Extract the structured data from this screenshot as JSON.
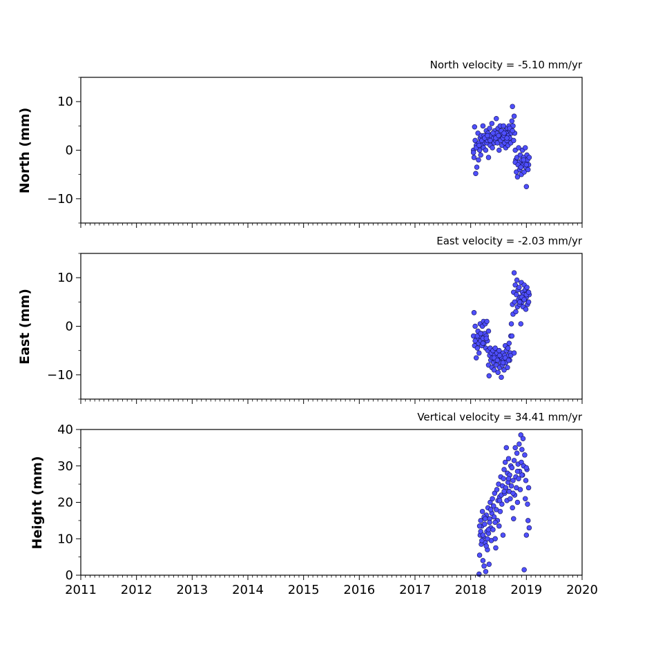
{
  "colors": {
    "point_fill": "#4f4fff",
    "point_edge": "#1a1a66",
    "axis": "#000000",
    "background": "#ffffff"
  },
  "chart_data": [
    {
      "type": "scatter",
      "title": "North velocity = -5.10 mm/yr",
      "xlabel": "",
      "ylabel": "North (mm)",
      "xlim": [
        2011,
        2020
      ],
      "ylim": [
        -15,
        15
      ],
      "yticks": [
        -10,
        0,
        10
      ],
      "ytick_labels": [
        "−10",
        "0",
        "10"
      ],
      "grid": false,
      "legend": "none",
      "series": [
        {
          "x": [
            2018.05,
            2018.06,
            2018.07,
            2018.08,
            2018.09,
            2018.1,
            2018.11,
            2018.12,
            2018.13,
            2018.14,
            2018.15,
            2018.16,
            2018.17,
            2018.18,
            2018.19,
            2018.2,
            2018.21,
            2018.22,
            2018.23,
            2018.24,
            2018.25,
            2018.26,
            2018.27,
            2018.28,
            2018.29,
            2018.3,
            2018.31,
            2018.32,
            2018.33,
            2018.34,
            2018.35,
            2018.36,
            2018.37,
            2018.38,
            2018.39,
            2018.4,
            2018.41,
            2018.42,
            2018.43,
            2018.44,
            2018.45,
            2018.46,
            2018.47,
            2018.48,
            2018.49,
            2018.5,
            2018.51,
            2018.52,
            2018.53,
            2018.54,
            2018.55,
            2018.56,
            2018.57,
            2018.58,
            2018.59,
            2018.6,
            2018.61,
            2018.62,
            2018.63,
            2018.64,
            2018.65,
            2018.66,
            2018.67,
            2018.68,
            2018.69,
            2018.7,
            2018.71,
            2018.72,
            2018.73,
            2018.74,
            2018.75,
            2018.76,
            2018.77,
            2018.78,
            2018.79,
            2018.8,
            2018.81,
            2018.82,
            2018.83,
            2018.84,
            2018.85,
            2018.86,
            2018.87,
            2018.88,
            2018.89,
            2018.9,
            2018.91,
            2018.92,
            2018.93,
            2018.94,
            2018.95,
            2018.96,
            2018.97,
            2018.98,
            2018.99,
            2019.0,
            2019.01,
            2019.02,
            2019.03,
            2019.04,
            2019.05,
            2018.05,
            2018.1,
            2018.15,
            2018.2,
            2018.25,
            2018.3,
            2018.35,
            2018.4,
            2018.45,
            2018.5,
            2018.55,
            2018.6,
            2018.65,
            2018.7,
            2018.75,
            2018.8,
            2018.85,
            2018.9,
            2018.95,
            2019.0
          ],
          "y": [
            0.0,
            -1.5,
            4.8,
            2.0,
            -4.8,
            1.0,
            -3.5,
            0.5,
            3.5,
            -2.0,
            1.5,
            0.0,
            2.5,
            -1.0,
            3.0,
            1.0,
            2.0,
            5.0,
            0.5,
            3.0,
            1.5,
            2.5,
            0.0,
            4.0,
            1.5,
            2.0,
            3.5,
            -1.5,
            2.5,
            4.5,
            1.0,
            3.0,
            2.0,
            5.5,
            0.5,
            3.5,
            2.5,
            1.5,
            4.0,
            3.0,
            2.0,
            6.5,
            3.5,
            1.5,
            4.5,
            2.5,
            0.0,
            3.0,
            5.0,
            2.0,
            4.0,
            1.0,
            3.5,
            2.5,
            5.0,
            3.0,
            1.5,
            4.0,
            0.5,
            3.5,
            2.0,
            4.5,
            1.0,
            3.0,
            5.0,
            2.5,
            4.0,
            1.5,
            3.5,
            6.0,
            9.0,
            5.0,
            2.0,
            7.0,
            3.5,
            0.0,
            -2.0,
            -4.5,
            -1.5,
            -5.5,
            -3.0,
            0.5,
            -2.5,
            -4.0,
            -1.0,
            -3.5,
            -5.0,
            -2.0,
            0.0,
            -3.0,
            -1.5,
            -4.5,
            -2.5,
            0.5,
            -3.5,
            -7.5,
            -1.0,
            -2.0,
            -4.0,
            -3.0,
            -1.5,
            -0.5,
            0.5,
            1.0,
            2.0,
            2.5,
            3.0,
            2.0,
            3.5,
            2.5,
            3.0,
            4.0,
            3.5,
            2.5,
            4.5,
            4.0,
            -2.5,
            -3.0,
            -3.5,
            -2.0,
            -3.0
          ]
        }
      ]
    },
    {
      "type": "scatter",
      "title": "East velocity = -2.03 mm/yr",
      "xlabel": "",
      "ylabel": "East (mm)",
      "xlim": [
        2011,
        2020
      ],
      "ylim": [
        -15,
        15
      ],
      "yticks": [
        -10,
        0,
        10
      ],
      "ytick_labels": [
        "−10",
        "0",
        "10"
      ],
      "grid": false,
      "legend": "none",
      "series": [
        {
          "x": [
            2018.05,
            2018.06,
            2018.07,
            2018.08,
            2018.09,
            2018.1,
            2018.11,
            2018.12,
            2018.13,
            2018.14,
            2018.15,
            2018.16,
            2018.17,
            2018.18,
            2018.19,
            2018.2,
            2018.21,
            2018.22,
            2018.23,
            2018.24,
            2018.25,
            2018.26,
            2018.27,
            2018.28,
            2018.29,
            2018.3,
            2018.31,
            2018.32,
            2018.33,
            2018.34,
            2018.35,
            2018.36,
            2018.37,
            2018.38,
            2018.39,
            2018.4,
            2018.41,
            2018.42,
            2018.43,
            2018.44,
            2018.45,
            2018.46,
            2018.47,
            2018.48,
            2018.49,
            2018.5,
            2018.51,
            2018.52,
            2018.53,
            2018.54,
            2018.55,
            2018.56,
            2018.57,
            2018.58,
            2018.59,
            2018.6,
            2018.61,
            2018.62,
            2018.63,
            2018.64,
            2018.65,
            2018.66,
            2018.67,
            2018.68,
            2018.69,
            2018.7,
            2018.71,
            2018.72,
            2018.73,
            2018.74,
            2018.75,
            2018.76,
            2018.77,
            2018.78,
            2018.79,
            2018.8,
            2018.81,
            2018.82,
            2018.83,
            2018.84,
            2018.85,
            2018.86,
            2018.87,
            2018.88,
            2018.89,
            2018.9,
            2018.91,
            2018.92,
            2018.93,
            2018.94,
            2018.95,
            2018.96,
            2018.97,
            2018.98,
            2018.99,
            2019.0,
            2019.01,
            2019.02,
            2019.03,
            2019.04,
            2019.05,
            2018.08,
            2018.12,
            2018.18,
            2018.22,
            2018.28,
            2018.32,
            2018.42,
            2018.48,
            2018.52,
            2018.58,
            2018.62,
            2018.68,
            2018.72,
            2018.78,
            2018.88,
            2018.92,
            2018.96,
            2019.0,
            2019.04
          ],
          "y": [
            -2.0,
            2.8,
            -4.0,
            0.0,
            -3.0,
            -6.5,
            -2.5,
            -4.5,
            -1.0,
            -3.5,
            -5.5,
            -2.0,
            0.5,
            -3.0,
            -1.5,
            -4.0,
            0.0,
            -2.5,
            1.0,
            -3.5,
            -1.5,
            0.5,
            -4.5,
            -2.0,
            1.0,
            -3.0,
            -5.0,
            -8.0,
            -10.2,
            -6.0,
            -4.5,
            -7.0,
            -5.5,
            -8.5,
            -6.5,
            -5.0,
            -7.5,
            -9.0,
            -6.0,
            -4.5,
            -7.0,
            -8.0,
            -5.5,
            -6.5,
            -9.5,
            -7.0,
            -5.0,
            -8.5,
            -6.0,
            -7.5,
            -10.5,
            -6.5,
            -8.0,
            -5.5,
            -7.0,
            -9.0,
            -6.0,
            -4.0,
            -7.5,
            -5.0,
            -6.5,
            -8.5,
            -4.5,
            -6.0,
            -3.5,
            -7.0,
            -5.5,
            -2.0,
            0.5,
            -2.0,
            4.5,
            2.5,
            7.0,
            11.0,
            5.0,
            8.5,
            3.0,
            6.5,
            9.5,
            4.0,
            7.5,
            5.5,
            8.0,
            4.5,
            6.0,
            0.5,
            9.0,
            5.0,
            7.0,
            4.0,
            6.5,
            8.5,
            5.5,
            7.5,
            3.5,
            6.0,
            8.0,
            4.5,
            7.0,
            5.0,
            6.5,
            -3.0,
            -2.0,
            -1.5,
            -3.5,
            -2.5,
            -1.0,
            -6.5,
            -7.0,
            -6.0,
            -7.5,
            -6.5,
            -7.0,
            -6.0,
            -5.5,
            5.0,
            6.0,
            5.5,
            6.5,
            7.0
          ]
        }
      ]
    },
    {
      "type": "scatter",
      "title": "Vertical velocity = 34.41 mm/yr",
      "xlabel": "",
      "ylabel": "Height (mm)",
      "xlim": [
        2011,
        2020
      ],
      "ylim": [
        0,
        40
      ],
      "yticks": [
        0,
        10,
        20,
        30,
        40
      ],
      "ytick_labels": [
        "0",
        "10",
        "20",
        "30",
        "40"
      ],
      "xticks": [
        2011,
        2012,
        2013,
        2014,
        2015,
        2016,
        2017,
        2018,
        2019,
        2020
      ],
      "xtick_labels": [
        "2011",
        "2012",
        "2013",
        "2014",
        "2015",
        "2016",
        "2017",
        "2018",
        "2019",
        "2020"
      ],
      "grid": false,
      "legend": "none",
      "series": [
        {
          "x": [
            2018.15,
            2018.16,
            2018.17,
            2018.18,
            2018.19,
            2018.2,
            2018.21,
            2018.22,
            2018.23,
            2018.24,
            2018.25,
            2018.26,
            2018.27,
            2018.28,
            2018.29,
            2018.3,
            2018.31,
            2018.32,
            2018.33,
            2018.34,
            2018.35,
            2018.36,
            2018.37,
            2018.38,
            2018.39,
            2018.4,
            2018.41,
            2018.42,
            2018.43,
            2018.44,
            2018.45,
            2018.46,
            2018.47,
            2018.48,
            2018.49,
            2018.5,
            2018.51,
            2018.52,
            2018.53,
            2018.54,
            2018.55,
            2018.56,
            2018.57,
            2018.58,
            2018.59,
            2018.6,
            2018.61,
            2018.62,
            2018.63,
            2018.64,
            2018.65,
            2018.66,
            2018.67,
            2018.68,
            2018.69,
            2018.7,
            2018.71,
            2018.72,
            2018.73,
            2018.74,
            2018.75,
            2018.76,
            2018.77,
            2018.78,
            2018.79,
            2018.8,
            2018.81,
            2018.82,
            2018.83,
            2018.84,
            2018.85,
            2018.86,
            2018.87,
            2018.88,
            2018.89,
            2018.9,
            2018.91,
            2018.92,
            2018.93,
            2018.94,
            2018.95,
            2018.96,
            2018.97,
            2018.98,
            2018.99,
            2019.0,
            2019.01,
            2019.02,
            2019.03,
            2019.04,
            2019.05,
            2018.16,
            2018.2,
            2018.24,
            2018.28,
            2018.32,
            2018.36,
            2018.44,
            2018.52,
            2018.6,
            2018.68,
            2018.76,
            2018.84,
            2018.92,
            2019.0,
            2018.18,
            2018.22,
            2018.26,
            2018.3,
            2018.34
          ],
          "y": [
            0.3,
            5.5,
            11.0,
            15.0,
            8.5,
            13.5,
            17.5,
            4.0,
            10.5,
            2.5,
            14.0,
            9.0,
            1.0,
            16.5,
            12.0,
            7.0,
            18.5,
            11.5,
            3.0,
            15.5,
            20.0,
            13.0,
            9.5,
            17.0,
            21.0,
            12.5,
            19.0,
            16.0,
            22.5,
            10.0,
            7.5,
            18.0,
            23.5,
            15.0,
            20.5,
            25.0,
            13.5,
            21.5,
            17.5,
            27.0,
            22.0,
            19.5,
            24.5,
            11.0,
            26.5,
            29.0,
            22.5,
            31.0,
            24.0,
            35.0,
            20.5,
            28.0,
            25.5,
            32.0,
            23.0,
            27.5,
            21.0,
            30.0,
            24.5,
            29.5,
            18.5,
            26.0,
            15.5,
            31.5,
            22.0,
            35.0,
            27.0,
            24.0,
            33.5,
            20.0,
            30.5,
            26.5,
            36.0,
            28.5,
            23.5,
            38.5,
            31.0,
            34.5,
            27.5,
            37.5,
            30.0,
            1.5,
            33.0,
            21.0,
            26.0,
            11.0,
            29.0,
            19.5,
            15.0,
            24.0,
            13.0,
            13.5,
            9.5,
            16.0,
            8.0,
            12.5,
            18.0,
            14.5,
            20.5,
            23.0,
            26.5,
            22.5,
            28.5,
            27.5,
            29.5,
            12.0,
            11.0,
            15.5,
            10.0,
            14.5
          ]
        }
      ]
    }
  ]
}
